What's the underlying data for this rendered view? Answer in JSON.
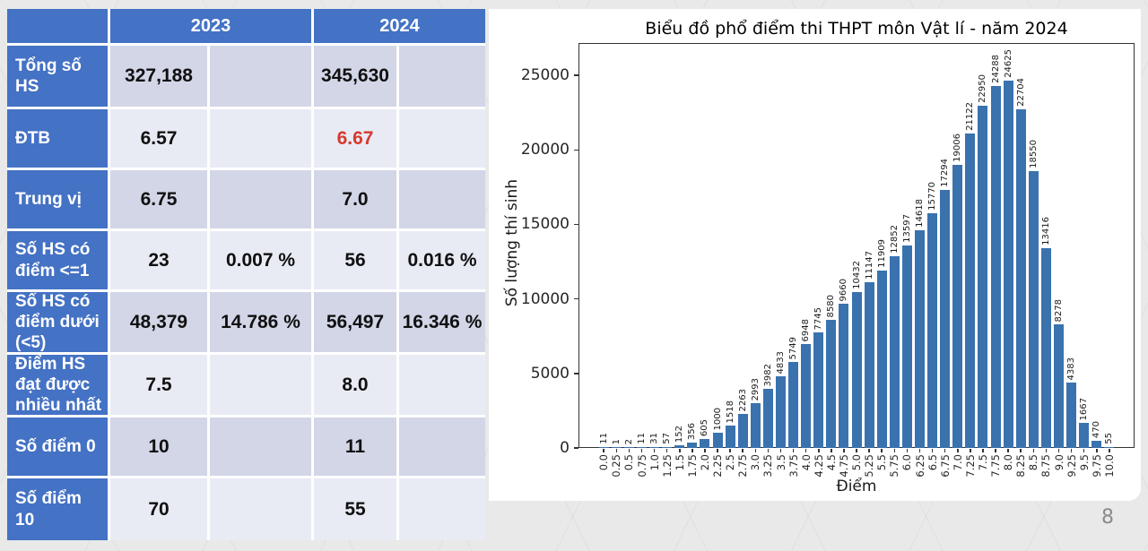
{
  "colors": {
    "accent_blue": "#4472c4",
    "highlight_red": "#d63a2e",
    "bar_blue": "#3a72ae",
    "band_dark": "#d2d6e7",
    "band_light": "#e9ebf4"
  },
  "table": {
    "col_headers": [
      "2023",
      "2024"
    ],
    "rows": [
      {
        "label": "Tổng số HS",
        "v2023": "327,188",
        "p2023": "",
        "v2024": "345,630",
        "p2024": ""
      },
      {
        "label": "ĐTB",
        "v2023": "6.57",
        "p2023": "",
        "v2024": "6.67",
        "p2024": "",
        "highlight2024": true
      },
      {
        "label": "Trung vị",
        "v2023": "6.75",
        "p2023": "",
        "v2024": "7.0",
        "p2024": ""
      },
      {
        "label": "Số HS có điểm <=1",
        "v2023": "23",
        "p2023": "0.007 %",
        "v2024": "56",
        "p2024": "0.016 %"
      },
      {
        "label": "Số HS có điểm dưới (<5)",
        "v2023": "48,379",
        "p2023": "14.786 %",
        "v2024": "56,497",
        "p2024": "16.346 %"
      },
      {
        "label": "Điểm HS đạt được nhiều nhất",
        "v2023": "7.5",
        "p2023": "",
        "v2024": "8.0",
        "p2024": ""
      },
      {
        "label": "Số điểm 0",
        "v2023": "10",
        "p2023": "",
        "v2024": "11",
        "p2024": ""
      },
      {
        "label": "Số điểm 10",
        "v2023": "70",
        "p2023": "",
        "v2024": "55",
        "p2024": ""
      }
    ]
  },
  "chart_data": {
    "type": "bar",
    "title": "Biểu đồ phổ điểm thi THPT môn Vật lí - năm 2024",
    "xlabel": "Điểm",
    "ylabel": "Số lượng thí sinh",
    "bar_color": "#3a72ae",
    "categories": [
      "0.0",
      "0.25",
      "0.5",
      "0.75",
      "1.0",
      "1.25",
      "1.5",
      "1.75",
      "2.0",
      "2.25",
      "2.5",
      "2.75",
      "3.0",
      "3.25",
      "3.5",
      "3.75",
      "4.0",
      "4.25",
      "4.5",
      "4.75",
      "5.0",
      "5.25",
      "5.5",
      "5.75",
      "6.0",
      "6.25",
      "6.5",
      "6.75",
      "7.0",
      "7.25",
      "7.5",
      "7.75",
      "8.0",
      "8.25",
      "8.5",
      "8.75",
      "9.0",
      "9.25",
      "9.5",
      "9.75",
      "10.0"
    ],
    "values": [
      11,
      1,
      2,
      11,
      31,
      57,
      152,
      356,
      605,
      1000,
      1518,
      2263,
      2993,
      3982,
      4833,
      5749,
      6948,
      7745,
      8580,
      9660,
      10432,
      11147,
      11909,
      12852,
      13597,
      14618,
      15770,
      17294,
      19006,
      21122,
      22950,
      24288,
      24625,
      22704,
      18550,
      13416,
      8278,
      4383,
      1667,
      470,
      55
    ],
    "yticks": [
      0,
      5000,
      10000,
      15000,
      20000,
      25000
    ],
    "ylim": [
      0,
      27000
    ],
    "grid": false,
    "legend": "none",
    "bar_labels_shown": true
  },
  "page": {
    "number": "8"
  }
}
